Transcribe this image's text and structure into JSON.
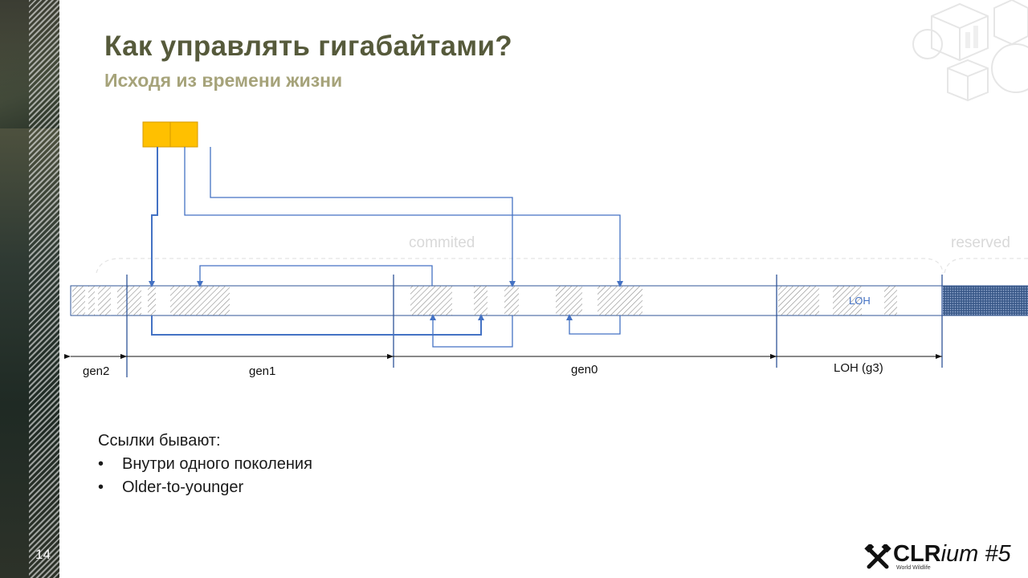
{
  "slide": {
    "number": "14",
    "title": "Как управлять гигабайтами?",
    "subtitle": "Исходя из времени жизни"
  },
  "diagram": {
    "committed_label": "commited",
    "reserved_label": "reserved",
    "loh_inner_label": "LOH",
    "generations": [
      "gen2",
      "gen1",
      "gen0",
      "LOH (g3)"
    ]
  },
  "notes": {
    "intro": "Ссылки бывают:",
    "items": [
      "Внутри одного поколения",
      "Older-to-younger"
    ],
    "bullet": "•"
  },
  "logo": {
    "brand_bold": "CLR",
    "brand_italic": "ium #5",
    "tagline": "World Wildlife"
  },
  "colors": {
    "title": "#565a3b",
    "subtitle": "#a6a37a",
    "line": "#4472c4",
    "roots": "#ffc000",
    "hatch": "#7f7f7f"
  }
}
